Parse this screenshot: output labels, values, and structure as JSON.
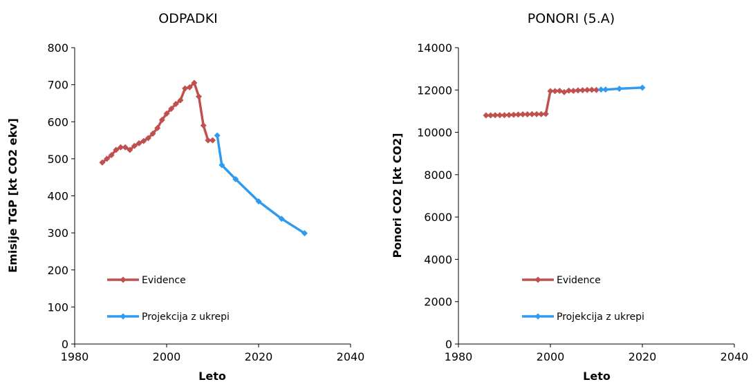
{
  "chart_data": [
    {
      "type": "line",
      "title": "ODPADKI",
      "xlabel": "Leto",
      "ylabel": "Emisije TGP [kt CO2 ekv]",
      "xlim": [
        1980,
        2040
      ],
      "ylim": [
        0,
        800
      ],
      "xticks": [
        "1980",
        "2000",
        "2020",
        "2040"
      ],
      "yticks": [
        "0",
        "100",
        "200",
        "300",
        "400",
        "500",
        "600",
        "700",
        "800"
      ],
      "grid": false,
      "legend_position": "bottom-left",
      "series": [
        {
          "name": "Evidence",
          "color": "#c0504d",
          "x": [
            1986,
            1987,
            1988,
            1989,
            1990,
            1991,
            1992,
            1993,
            1994,
            1995,
            1996,
            1997,
            1998,
            1999,
            2000,
            2001,
            2002,
            2003,
            2004,
            2005,
            2006,
            2007,
            2008,
            2009,
            2010
          ],
          "y": [
            490,
            500,
            510,
            524,
            531,
            531,
            524,
            535,
            542,
            548,
            556,
            568,
            583,
            605,
            622,
            635,
            648,
            658,
            690,
            693,
            705,
            668,
            590,
            550,
            550
          ]
        },
        {
          "name": "Projekcija z ukrepi",
          "color": "#2e9bf0",
          "x": [
            2011,
            2012,
            2015,
            2020,
            2025,
            2030
          ],
          "y": [
            563,
            483,
            445,
            385,
            338,
            299
          ]
        }
      ]
    },
    {
      "type": "line",
      "title": "PONORI (5.A)",
      "xlabel": "Leto",
      "ylabel": "Ponori CO2 [kt CO2]",
      "xlim": [
        1980,
        2040
      ],
      "ylim": [
        0,
        14000
      ],
      "xticks": [
        "1980",
        "2000",
        "2020",
        "2040"
      ],
      "yticks": [
        "0",
        "2000",
        "4000",
        "6000",
        "8000",
        "10000",
        "12000",
        "14000"
      ],
      "grid": false,
      "legend_position": "bottom-left",
      "series": [
        {
          "name": "Evidence",
          "color": "#c0504d",
          "x": [
            1986,
            1987,
            1988,
            1989,
            1990,
            1991,
            1992,
            1993,
            1994,
            1995,
            1996,
            1997,
            1998,
            1999,
            2000,
            2001,
            2002,
            2003,
            2004,
            2005,
            2006,
            2007,
            2008,
            2009,
            2010
          ],
          "y": [
            10800,
            10800,
            10810,
            10810,
            10810,
            10820,
            10830,
            10840,
            10850,
            10850,
            10860,
            10860,
            10860,
            10870,
            11950,
            11950,
            11960,
            11900,
            11970,
            11960,
            11980,
            11990,
            12000,
            12010,
            12000
          ]
        },
        {
          "name": "Projekcija z ukrepi",
          "color": "#2e9bf0",
          "x": [
            2011,
            2012,
            2015,
            2020
          ],
          "y": [
            12020,
            12020,
            12060,
            12110
          ]
        }
      ]
    }
  ]
}
